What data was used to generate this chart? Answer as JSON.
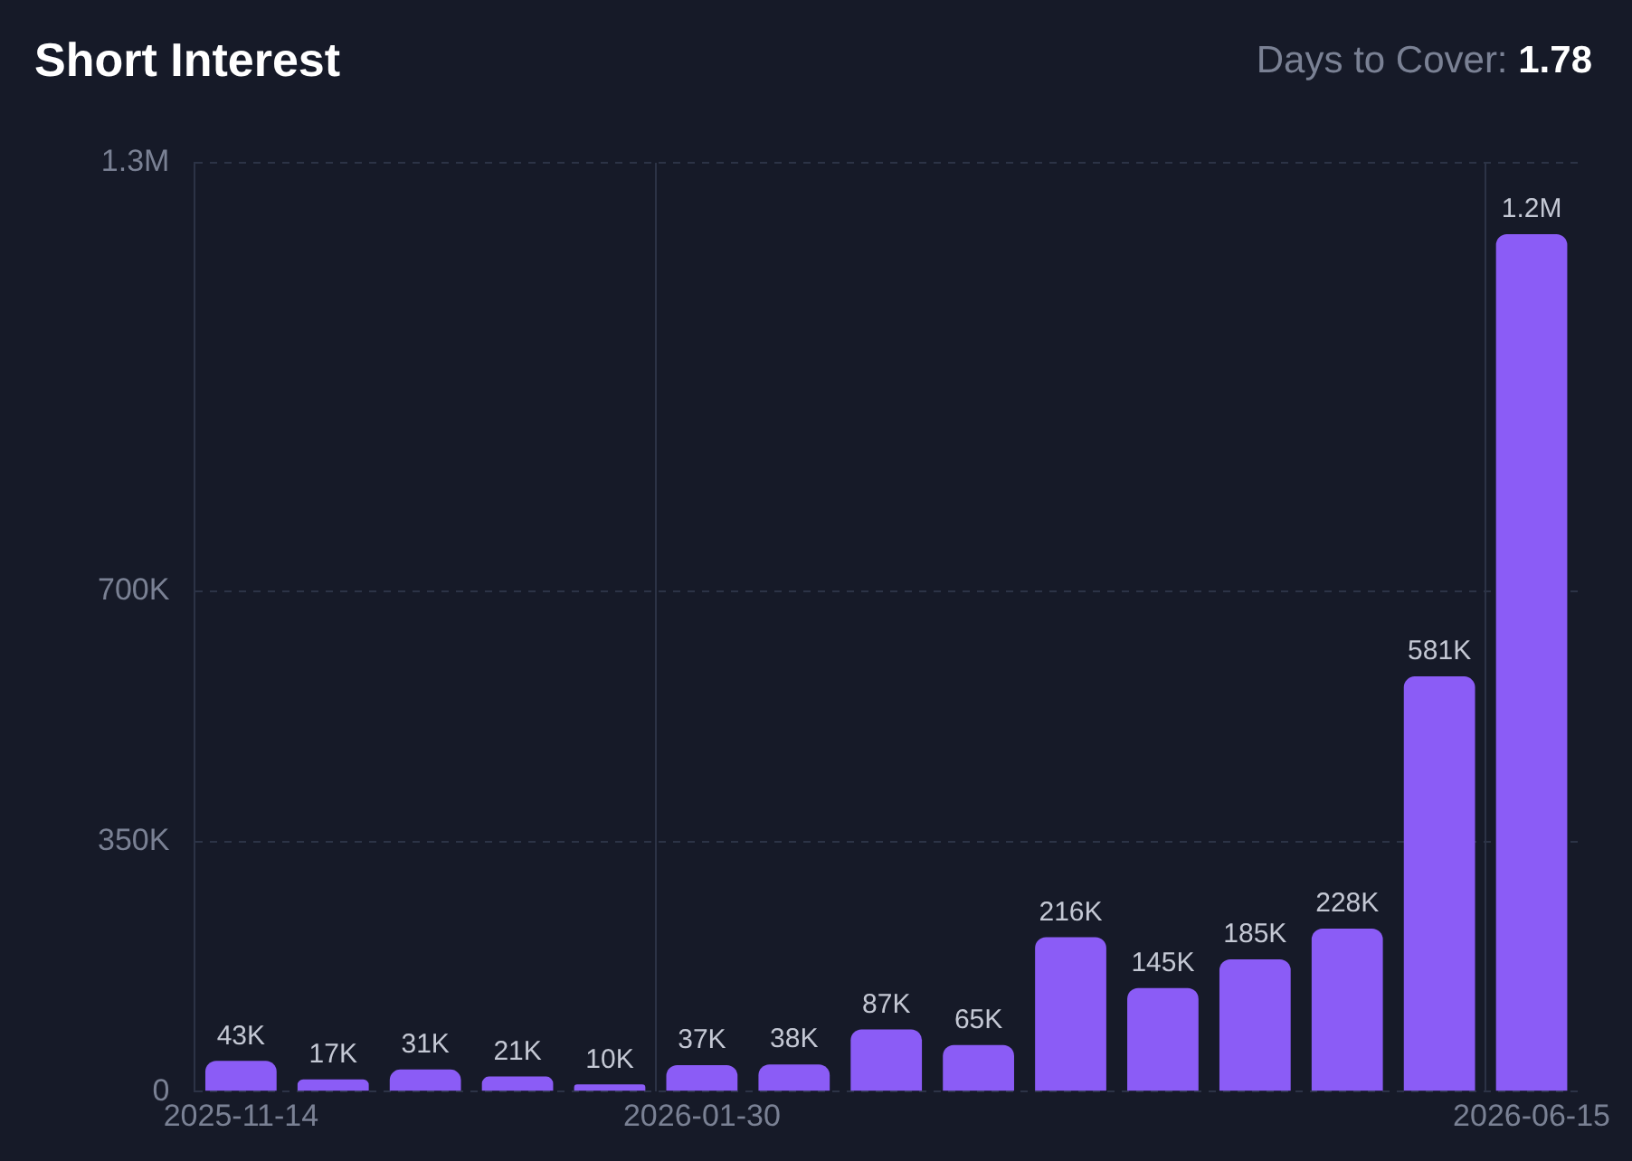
{
  "chart_data": {
    "type": "bar",
    "title": "Short Interest",
    "subtitle": "Days to Cover: 1.78",
    "categories": [
      "2025-11-14",
      null,
      null,
      null,
      null,
      "2026-01-30",
      null,
      null,
      null,
      null,
      null,
      null,
      null,
      null,
      "2026-06-15"
    ],
    "values": [
      43000,
      17000,
      31000,
      21000,
      10000,
      37000,
      38000,
      87000,
      65000,
      216000,
      145000,
      185000,
      228000,
      581000,
      1200000
    ],
    "value_labels": [
      "43K",
      "17K",
      "31K",
      "21K",
      "10K",
      "37K",
      "38K",
      "87K",
      "65K",
      "216K",
      "145K",
      "185K",
      "228K",
      "581K",
      "1.2M"
    ],
    "color": "#8b5cf6",
    "ylim": [
      0,
      1300000
    ],
    "yticks": [
      0,
      {
        "value": 350000,
        "label": "350K"
      },
      {
        "value": 700000,
        "label": "700K"
      },
      {
        "value": 1300000,
        "label": "1.3M"
      }
    ],
    "grid": true,
    "legend": false
  }
}
